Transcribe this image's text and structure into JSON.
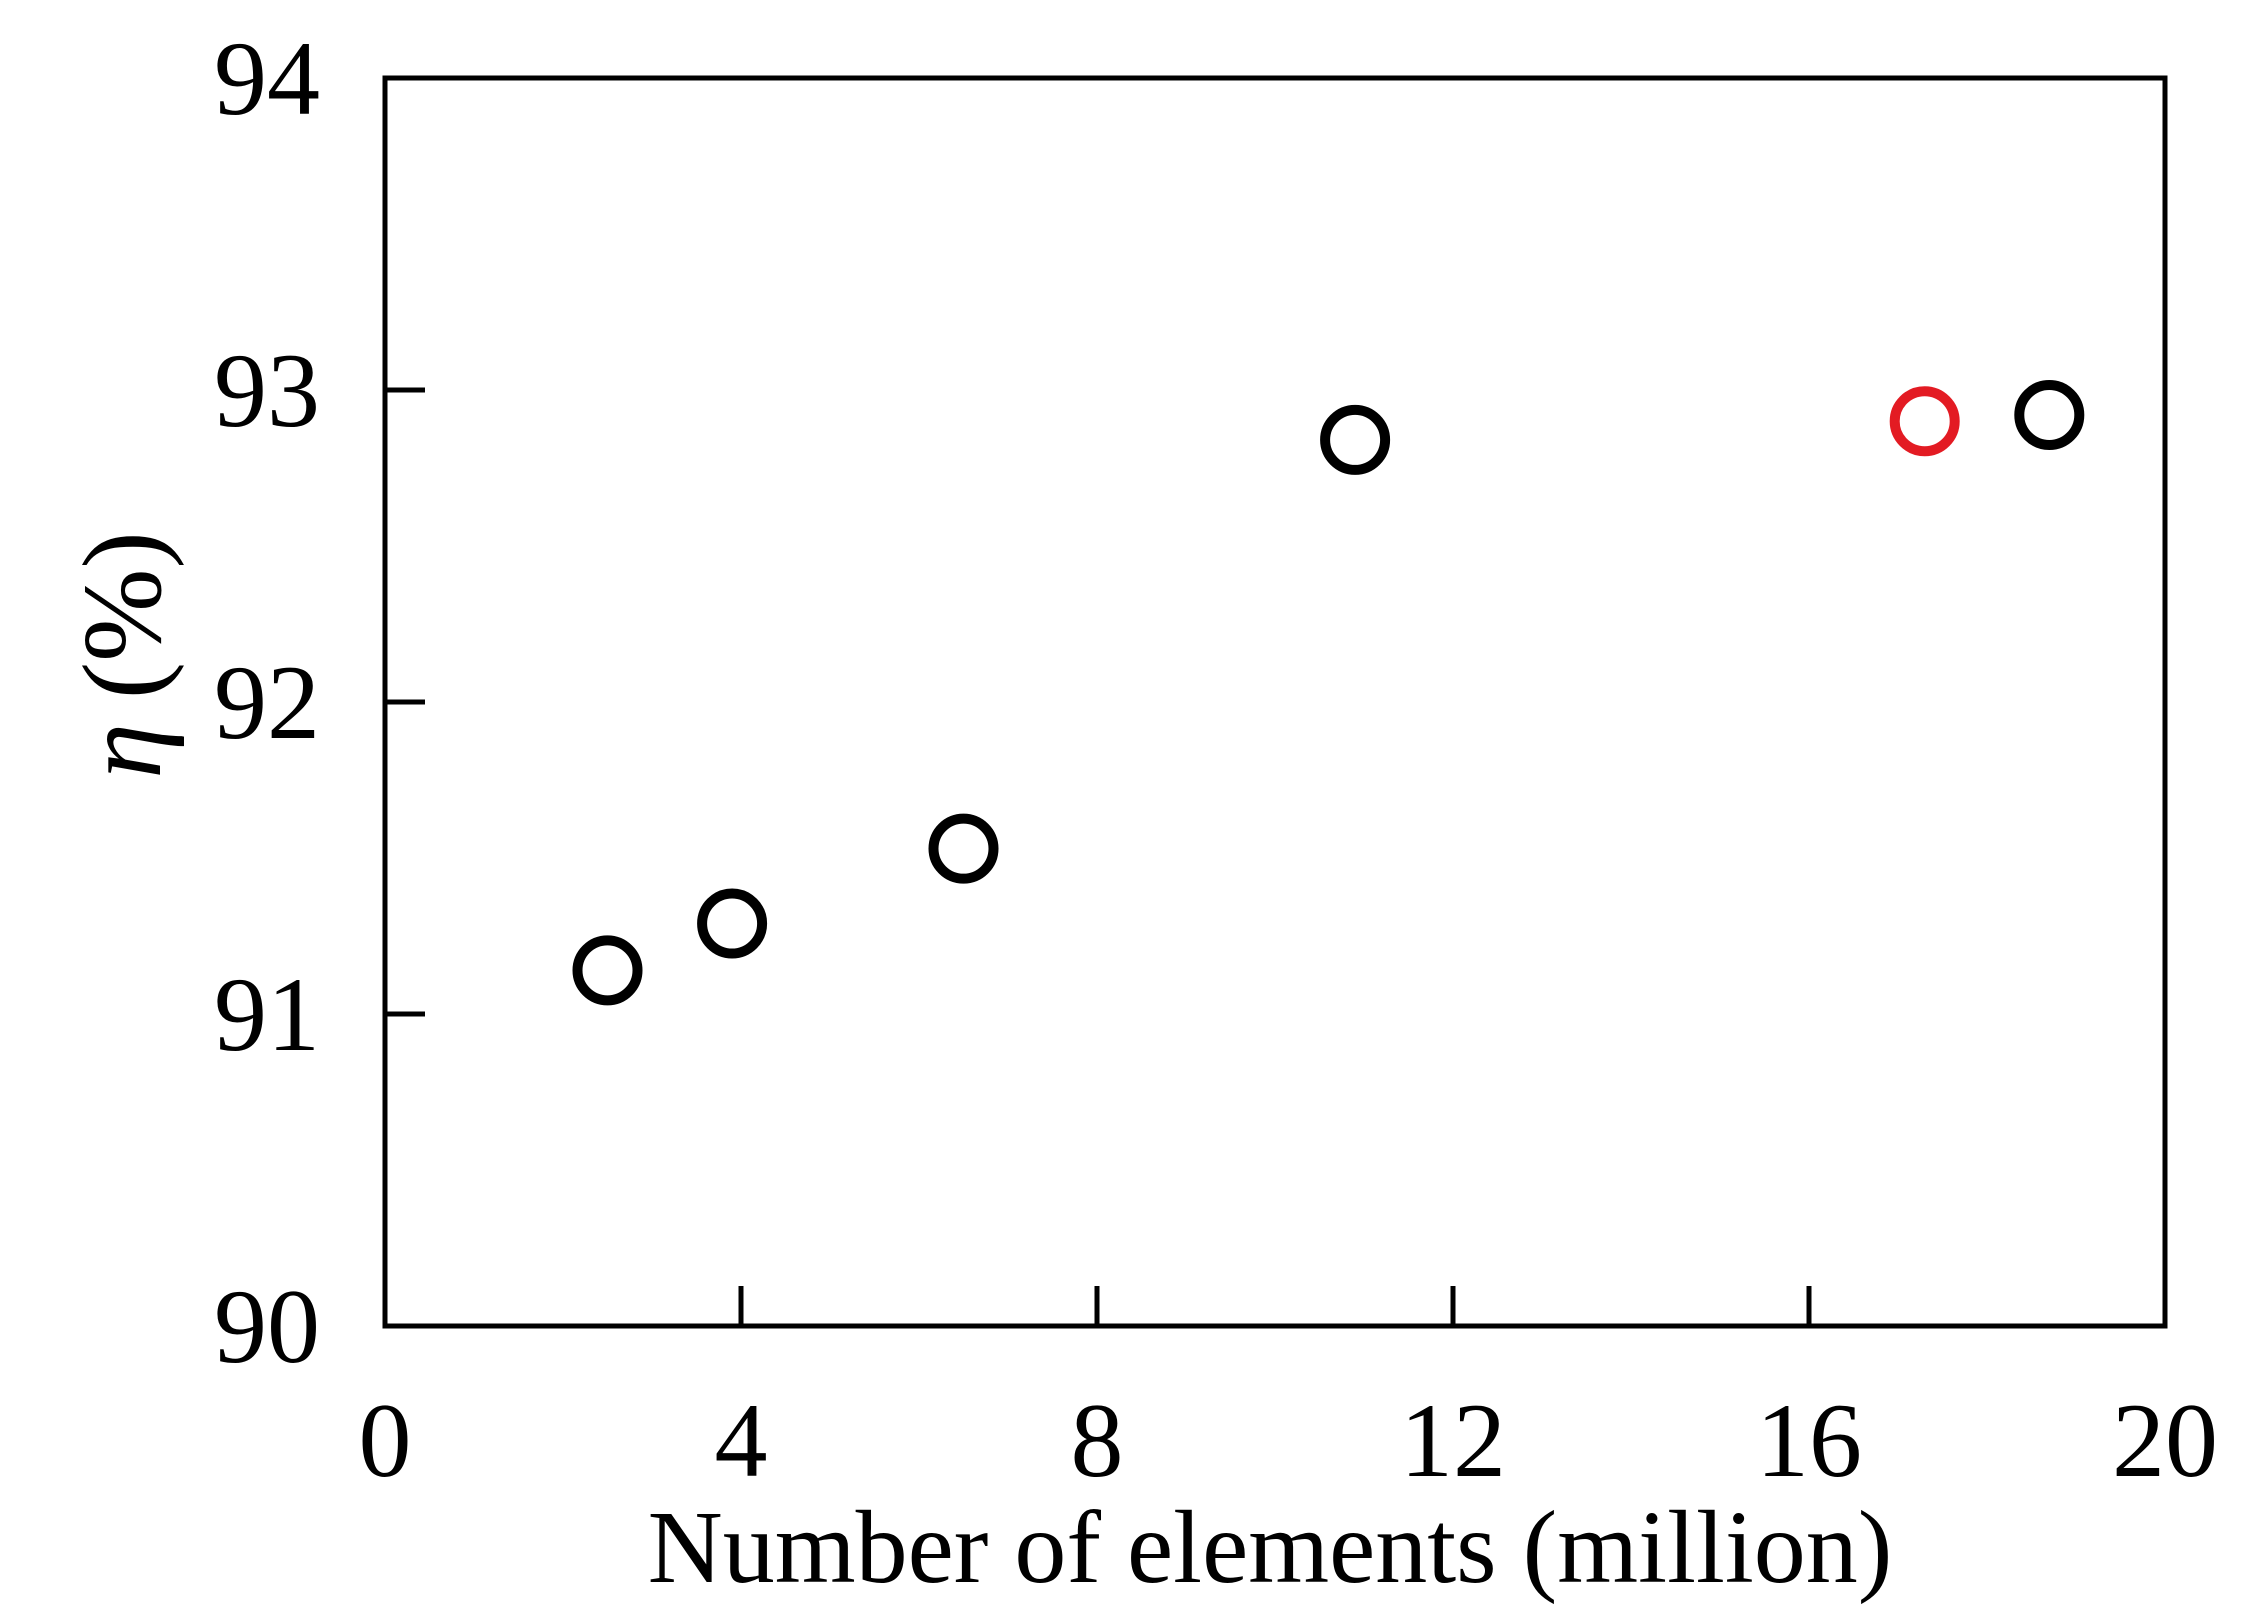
{
  "chart_data": {
    "type": "scatter",
    "title": "",
    "xlabel": "Number of elements (million)",
    "ylabel_symbol": "η",
    "ylabel_unit": "(%)",
    "xlim": [
      0,
      20
    ],
    "ylim": [
      90,
      94
    ],
    "xticks": [
      0,
      4,
      8,
      12,
      16,
      20
    ],
    "yticks": [
      90,
      91,
      92,
      93,
      94
    ],
    "grid": false,
    "legend": "none",
    "marker": "open-circle",
    "series": [
      {
        "color": "#000000",
        "points": [
          {
            "x": 2.5,
            "y": 91.14
          },
          {
            "x": 3.9,
            "y": 91.29
          },
          {
            "x": 6.5,
            "y": 91.53
          },
          {
            "x": 10.9,
            "y": 92.84
          },
          {
            "x": 18.7,
            "y": 92.92
          }
        ]
      },
      {
        "color": "#e31b23",
        "points": [
          {
            "x": 17.3,
            "y": 92.9
          }
        ]
      }
    ]
  }
}
